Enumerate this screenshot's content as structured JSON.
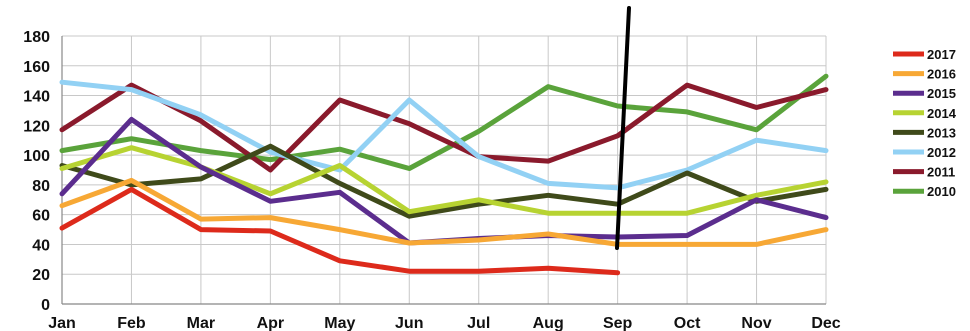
{
  "chart_data": {
    "type": "line",
    "title": "",
    "xlabel": "",
    "ylabel": "",
    "categories": [
      "Jan",
      "Feb",
      "Mar",
      "Apr",
      "May",
      "Jun",
      "Jul",
      "Aug",
      "Sep",
      "Oct",
      "Nov",
      "Dec"
    ],
    "ylim": [
      0,
      180
    ],
    "yticks": [
      0,
      20,
      40,
      60,
      80,
      100,
      120,
      140,
      160,
      180
    ],
    "grid": true,
    "legend_position": "right",
    "series": [
      {
        "name": "2017",
        "color": "#dd2a1b",
        "values": [
          51,
          77,
          50,
          49,
          29,
          22,
          22,
          24,
          21,
          null,
          null,
          null
        ]
      },
      {
        "name": "2016",
        "color": "#f7a835",
        "values": [
          66,
          83,
          57,
          58,
          50,
          41,
          43,
          47,
          40,
          40,
          40,
          50
        ]
      },
      {
        "name": "2015",
        "color": "#5b2d8e",
        "values": [
          74,
          124,
          92,
          69,
          75,
          41,
          44,
          46,
          45,
          46,
          70,
          58
        ]
      },
      {
        "name": "2014",
        "color": "#b7d332",
        "values": [
          91,
          105,
          92,
          74,
          93,
          62,
          70,
          61,
          61,
          61,
          73,
          82
        ]
      },
      {
        "name": "2013",
        "color": "#3f4a1a",
        "values": [
          93,
          80,
          84,
          106,
          81,
          59,
          67,
          73,
          67,
          88,
          69,
          77
        ]
      },
      {
        "name": "2012",
        "color": "#92d1f4",
        "values": [
          149,
          144,
          127,
          102,
          90,
          137,
          99,
          81,
          78,
          90,
          110,
          103
        ]
      },
      {
        "name": "2011",
        "color": "#8a1a2c",
        "values": [
          117,
          147,
          123,
          90,
          137,
          121,
          99,
          96,
          113,
          147,
          132,
          144
        ]
      },
      {
        "name": "2010",
        "color": "#5aa33b",
        "values": [
          103,
          111,
          103,
          97,
          104,
          91,
          116,
          146,
          133,
          129,
          117,
          153
        ]
      }
    ]
  }
}
